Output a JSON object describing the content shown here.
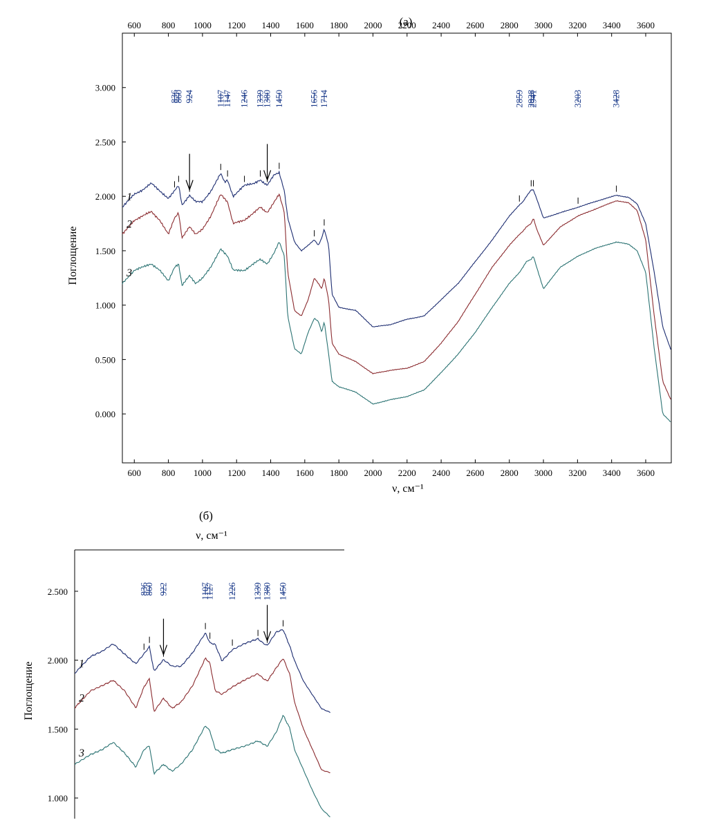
{
  "chart_data": [
    {
      "panel": "(a)",
      "type": "line",
      "title": "(a)",
      "xlabel": "ν, см⁻¹",
      "ylabel": "Поглощение",
      "xlim": [
        530,
        3750
      ],
      "ylim": [
        -0.45,
        3.5
      ],
      "xticks": [
        600,
        800,
        1000,
        1200,
        1400,
        1600,
        1800,
        2000,
        2200,
        2400,
        2600,
        2800,
        3000,
        3200,
        3400,
        3600
      ],
      "yticks": [
        "0.000",
        "0.500",
        "1.000",
        "1.500",
        "2.000",
        "2.500",
        "3.000"
      ],
      "ytick_values": [
        0,
        0.5,
        1,
        1.5,
        2,
        2.5,
        3
      ],
      "peak_labels": [
        "836",
        "860",
        "924",
        "1107",
        "1147",
        "1246",
        "1339",
        "1380",
        "1450",
        "1656",
        "1714",
        "2859",
        "2928",
        "2941",
        "3203",
        "3428"
      ],
      "arrows": [
        924,
        1380
      ],
      "series": [
        {
          "name": "1",
          "color": "#1c2c70",
          "x": [
            530,
            600,
            650,
            700,
            750,
            800,
            836,
            860,
            880,
            924,
            960,
            1000,
            1050,
            1107,
            1130,
            1147,
            1180,
            1246,
            1300,
            1339,
            1360,
            1380,
            1420,
            1450,
            1480,
            1500,
            1540,
            1580,
            1620,
            1656,
            1680,
            1700,
            1714,
            1740,
            1760,
            1800,
            1900,
            2000,
            2100,
            2200,
            2300,
            2400,
            2500,
            2600,
            2700,
            2800,
            2859,
            2880,
            2900,
            2928,
            2941,
            2960,
            3000,
            3100,
            3203,
            3300,
            3428,
            3500,
            3550,
            3600,
            3650,
            3700,
            3750
          ],
          "y": [
            1.9,
            2.02,
            2.06,
            2.12,
            2.05,
            1.98,
            2.05,
            2.1,
            1.92,
            2.01,
            1.95,
            1.95,
            2.05,
            2.21,
            2.13,
            2.15,
            2.0,
            2.1,
            2.12,
            2.15,
            2.12,
            2.1,
            2.2,
            2.22,
            2.05,
            1.8,
            1.58,
            1.5,
            1.55,
            1.6,
            1.55,
            1.62,
            1.7,
            1.55,
            1.1,
            0.98,
            0.95,
            0.8,
            0.82,
            0.87,
            0.9,
            1.05,
            1.2,
            1.4,
            1.6,
            1.82,
            1.92,
            1.95,
            2.0,
            2.06,
            2.06,
            1.98,
            1.8,
            1.85,
            1.9,
            1.95,
            2.01,
            1.99,
            1.93,
            1.75,
            1.3,
            0.8,
            0.58
          ]
        },
        {
          "name": "2",
          "color": "#8a2a2e",
          "x": [
            530,
            600,
            650,
            700,
            750,
            800,
            836,
            860,
            880,
            924,
            960,
            1000,
            1050,
            1107,
            1130,
            1147,
            1180,
            1246,
            1300,
            1339,
            1360,
            1380,
            1420,
            1450,
            1480,
            1500,
            1540,
            1580,
            1620,
            1656,
            1680,
            1700,
            1714,
            1740,
            1760,
            1800,
            1900,
            2000,
            2100,
            2200,
            2300,
            2400,
            2500,
            2600,
            2700,
            2800,
            2859,
            2880,
            2900,
            2928,
            2941,
            2960,
            3000,
            3100,
            3203,
            3300,
            3428,
            3500,
            3550,
            3600,
            3650,
            3700,
            3750
          ],
          "y": [
            1.65,
            1.78,
            1.82,
            1.86,
            1.78,
            1.65,
            1.8,
            1.85,
            1.62,
            1.72,
            1.65,
            1.7,
            1.82,
            2.02,
            1.98,
            1.95,
            1.75,
            1.78,
            1.85,
            1.9,
            1.87,
            1.85,
            1.95,
            2.02,
            1.85,
            1.3,
            0.95,
            0.9,
            1.05,
            1.25,
            1.2,
            1.15,
            1.25,
            1.05,
            0.65,
            0.55,
            0.48,
            0.37,
            0.4,
            0.42,
            0.48,
            0.65,
            0.85,
            1.1,
            1.35,
            1.55,
            1.65,
            1.68,
            1.72,
            1.75,
            1.8,
            1.7,
            1.55,
            1.72,
            1.82,
            1.88,
            1.96,
            1.94,
            1.87,
            1.6,
            0.9,
            0.3,
            0.12
          ]
        },
        {
          "name": "3",
          "color": "#2a7272",
          "x": [
            530,
            600,
            650,
            700,
            750,
            800,
            836,
            860,
            880,
            924,
            960,
            1000,
            1050,
            1107,
            1130,
            1147,
            1180,
            1246,
            1300,
            1339,
            1360,
            1380,
            1420,
            1450,
            1480,
            1500,
            1540,
            1580,
            1620,
            1656,
            1680,
            1700,
            1714,
            1740,
            1760,
            1800,
            1900,
            2000,
            2100,
            2200,
            2300,
            2400,
            2500,
            2600,
            2700,
            2800,
            2859,
            2880,
            2900,
            2928,
            2941,
            2960,
            3000,
            3100,
            3203,
            3300,
            3428,
            3500,
            3550,
            3600,
            3650,
            3700,
            3750
          ],
          "y": [
            1.2,
            1.32,
            1.35,
            1.38,
            1.32,
            1.22,
            1.35,
            1.38,
            1.18,
            1.27,
            1.2,
            1.25,
            1.35,
            1.52,
            1.48,
            1.45,
            1.32,
            1.32,
            1.38,
            1.42,
            1.4,
            1.38,
            1.48,
            1.58,
            1.45,
            0.9,
            0.6,
            0.55,
            0.75,
            0.88,
            0.85,
            0.75,
            0.85,
            0.55,
            0.3,
            0.25,
            0.2,
            0.09,
            0.13,
            0.16,
            0.22,
            0.38,
            0.55,
            0.75,
            0.98,
            1.2,
            1.3,
            1.35,
            1.4,
            1.42,
            1.45,
            1.35,
            1.15,
            1.35,
            1.45,
            1.52,
            1.58,
            1.56,
            1.5,
            1.3,
            0.6,
            0.0,
            -0.08
          ]
        }
      ]
    },
    {
      "panel": "(б)",
      "type": "line",
      "title": "(б)",
      "xlabel": "ν, см⁻¹",
      "ylabel": "Поглощение",
      "xlim": [
        530,
        1720
      ],
      "ylim": [
        0.85,
        2.8
      ],
      "yticks": [
        "1.000",
        "1.500",
        "2.000",
        "2.500"
      ],
      "ytick_values": [
        1,
        1.5,
        2,
        2.5
      ],
      "peak_labels": [
        "836",
        "860",
        "922",
        "1107",
        "1127",
        "1226",
        "1339",
        "1380",
        "1450"
      ],
      "arrows": [
        922,
        1380
      ],
      "series": [
        {
          "name": "1",
          "color": "#1c2c70",
          "x": [
            530,
            600,
            650,
            700,
            750,
            800,
            836,
            860,
            880,
            922,
            960,
            1000,
            1050,
            1107,
            1127,
            1150,
            1180,
            1226,
            1280,
            1339,
            1360,
            1380,
            1420,
            1450,
            1480,
            1500,
            1540,
            1580,
            1620,
            1660
          ],
          "y": [
            1.9,
            2.02,
            2.06,
            2.12,
            2.05,
            1.98,
            2.05,
            2.1,
            1.92,
            2.0,
            1.95,
            1.95,
            2.05,
            2.2,
            2.13,
            2.12,
            2.0,
            2.08,
            2.12,
            2.15,
            2.12,
            2.1,
            2.2,
            2.22,
            2.1,
            2.0,
            1.85,
            1.75,
            1.65,
            1.62
          ]
        },
        {
          "name": "2",
          "color": "#8a2a2e",
          "x": [
            530,
            600,
            650,
            700,
            750,
            800,
            836,
            860,
            880,
            922,
            960,
            1000,
            1050,
            1107,
            1127,
            1150,
            1180,
            1226,
            1280,
            1339,
            1360,
            1380,
            1420,
            1450,
            1480,
            1500,
            1540,
            1580,
            1620,
            1660
          ],
          "y": [
            1.65,
            1.78,
            1.82,
            1.86,
            1.78,
            1.65,
            1.8,
            1.86,
            1.62,
            1.72,
            1.65,
            1.7,
            1.82,
            2.02,
            1.98,
            1.78,
            1.75,
            1.8,
            1.85,
            1.9,
            1.87,
            1.85,
            1.95,
            2.02,
            1.9,
            1.7,
            1.5,
            1.35,
            1.2,
            1.18
          ]
        },
        {
          "name": "3",
          "color": "#2a7272",
          "x": [
            530,
            600,
            650,
            700,
            750,
            800,
            836,
            860,
            880,
            922,
            960,
            1000,
            1050,
            1107,
            1127,
            1150,
            1180,
            1226,
            1280,
            1339,
            1360,
            1380,
            1420,
            1450,
            1480,
            1500,
            1540,
            1580,
            1620,
            1660
          ],
          "y": [
            1.25,
            1.32,
            1.35,
            1.4,
            1.32,
            1.22,
            1.35,
            1.38,
            1.18,
            1.25,
            1.2,
            1.25,
            1.35,
            1.52,
            1.48,
            1.35,
            1.32,
            1.35,
            1.38,
            1.42,
            1.4,
            1.38,
            1.48,
            1.6,
            1.5,
            1.35,
            1.2,
            1.05,
            0.92,
            0.86
          ]
        }
      ]
    }
  ]
}
